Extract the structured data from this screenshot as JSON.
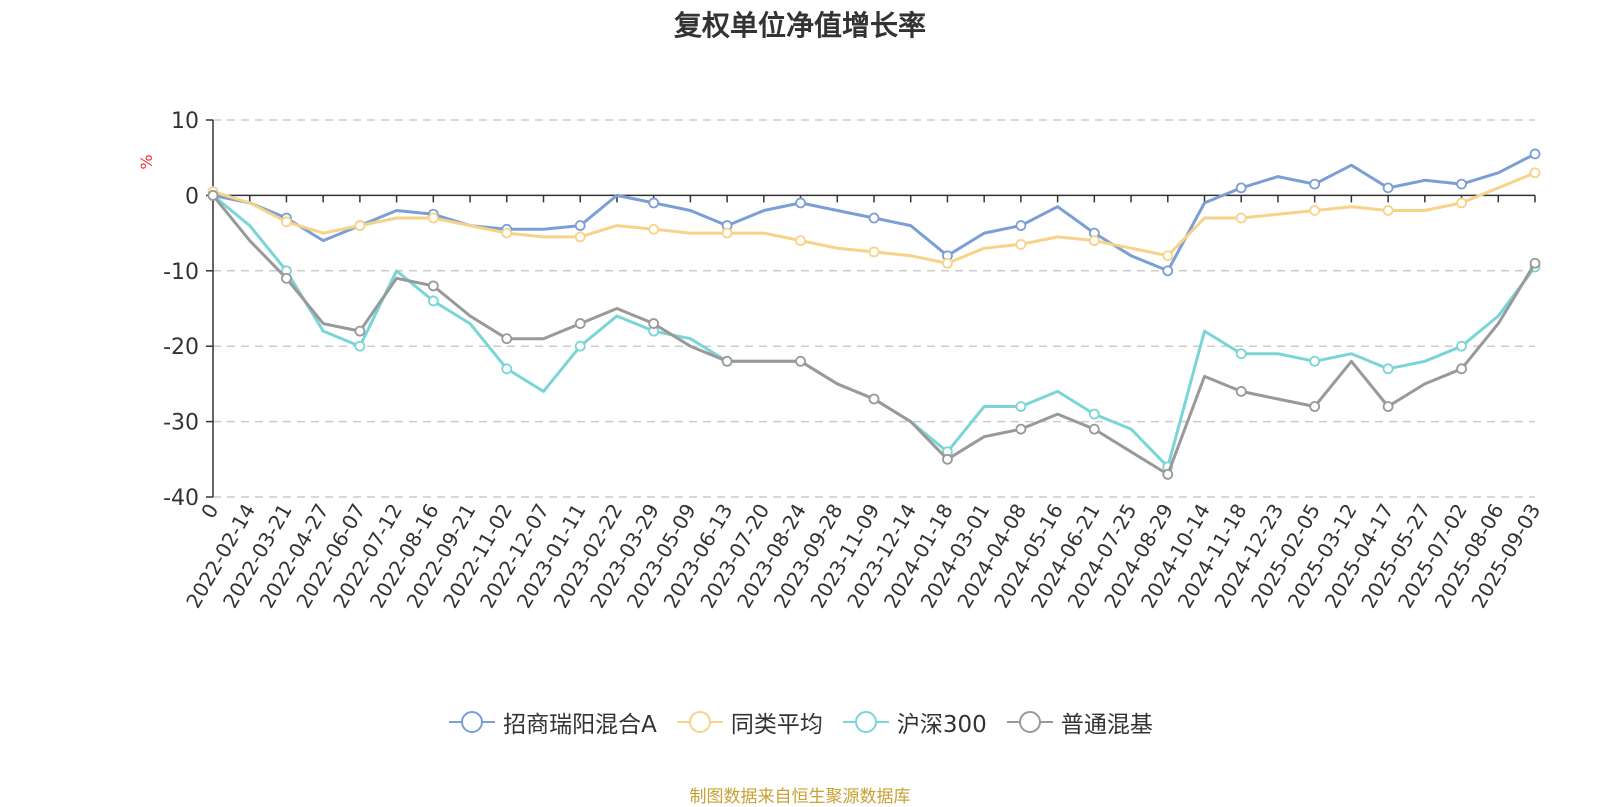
{
  "title": "复权单位净值增长率",
  "source": "制图数据来自恒生聚源数据库",
  "chart_data": {
    "type": "line",
    "ylabel": "%",
    "ylim": [
      -40,
      10
    ],
    "yticks": [
      10,
      0,
      -10,
      -20,
      -30,
      -40
    ],
    "grid": true,
    "legend_position": "bottom",
    "x_tick_labels": [
      "0",
      "2022-02-14",
      "2022-03-21",
      "2022-04-27",
      "2022-06-07",
      "2022-07-12",
      "2022-08-16",
      "2022-09-21",
      "2022-11-02",
      "2022-12-07",
      "2023-01-11",
      "2023-02-22",
      "2023-03-29",
      "2023-05-09",
      "2023-06-13",
      "2023-07-20",
      "2023-08-24",
      "2023-09-28",
      "2023-11-09",
      "2023-12-14",
      "2024-01-18",
      "2024-03-01",
      "2024-04-08",
      "2024-05-16",
      "2024-06-21",
      "2024-07-25",
      "2024-08-29",
      "2024-10-14",
      "2024-11-18",
      "2024-12-23",
      "2025-02-05",
      "2025-03-12",
      "2025-04-17",
      "2025-05-27",
      "2025-07-02",
      "2025-08-06",
      "2025-09-03"
    ],
    "series": [
      {
        "name": "招商瑞阳混合A",
        "color": "#7b9fd4",
        "values": [
          0,
          -1,
          -3,
          -6,
          -4,
          -2,
          -2.5,
          -4,
          -4.5,
          -4.5,
          -4,
          0,
          -1,
          -2,
          -4,
          -2,
          -1,
          -2,
          -3,
          -4,
          -8,
          -5,
          -4,
          -1.5,
          -5,
          -8,
          -10,
          -1,
          1,
          2.5,
          1.5,
          4,
          1,
          2,
          1.5,
          3,
          5.5
        ]
      },
      {
        "name": "同类平均",
        "color": "#f7d38a",
        "values": [
          0.5,
          -1,
          -3.5,
          -5,
          -4,
          -3,
          -3,
          -4,
          -5,
          -5.5,
          -5.5,
          -4,
          -4.5,
          -5,
          -5,
          -5,
          -6,
          -7,
          -7.5,
          -8,
          -9,
          -7,
          -6.5,
          -5.5,
          -6,
          -7,
          -8,
          -3,
          -3,
          -2.5,
          -2,
          -1.5,
          -2,
          -2,
          -1,
          1,
          3
        ]
      },
      {
        "name": "沪深300",
        "color": "#7ad6d6",
        "values": [
          0,
          -4,
          -10,
          -18,
          -20,
          -10,
          -14,
          -17,
          -23,
          -26,
          -20,
          -16,
          -18,
          -19,
          -22,
          -22,
          -22,
          -25,
          -27,
          -30,
          -34,
          -28,
          -28,
          -26,
          -29,
          -31,
          -36,
          -18,
          -21,
          -21,
          -22,
          -21,
          -23,
          -22,
          -20,
          -16,
          -9.5
        ]
      },
      {
        "name": "普通混基",
        "color": "#999999",
        "values": [
          0,
          -6,
          -11,
          -17,
          -18,
          -11,
          -12,
          -16,
          -19,
          -19,
          -17,
          -15,
          -17,
          -20,
          -22,
          -22,
          -22,
          -25,
          -27,
          -30,
          -35,
          -32,
          -31,
          -29,
          -31,
          -34,
          -37,
          -24,
          -26,
          -27,
          -28,
          -22,
          -28,
          -25,
          -23,
          -17,
          -9
        ]
      }
    ]
  }
}
